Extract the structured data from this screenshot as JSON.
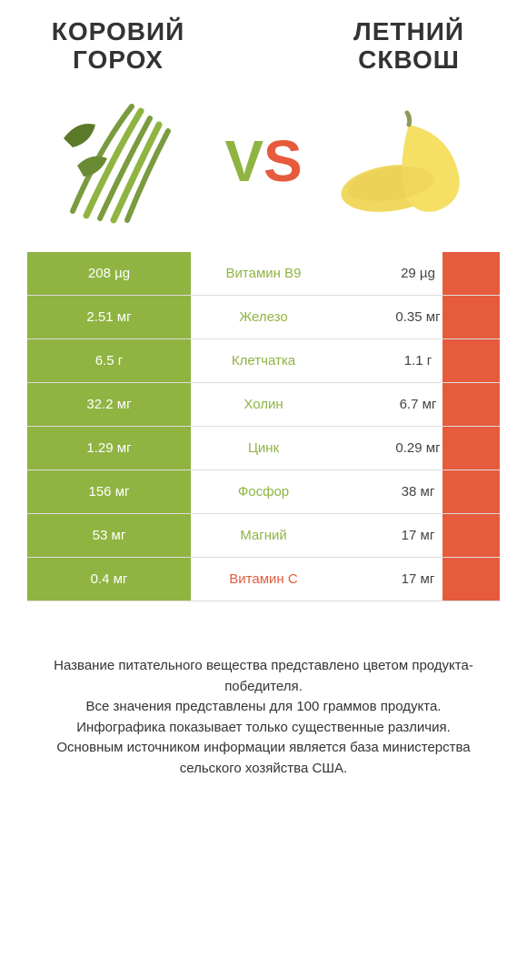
{
  "header": {
    "left_title": "КОРОВИЙ ГОРОХ",
    "right_title": "ЛЕТНИЙ СКВОШ",
    "vs_v": "V",
    "vs_s": "S"
  },
  "colors": {
    "green": "#8fb442",
    "orange": "#e55b3c",
    "white": "#ffffff",
    "text": "#444444",
    "border": "#dddddd"
  },
  "table": {
    "columns": [
      "left_value",
      "nutrient",
      "right_value"
    ],
    "left_bar_width_pct": 100,
    "right_bar_width_pct": 35,
    "rows": [
      {
        "left_value": "208 µg",
        "nutrient": "Витамин B9",
        "right_value": "29 µg",
        "winner": "left"
      },
      {
        "left_value": "2.51 мг",
        "nutrient": "Железо",
        "right_value": "0.35 мг",
        "winner": "left"
      },
      {
        "left_value": "6.5 г",
        "nutrient": "Клетчатка",
        "right_value": "1.1 г",
        "winner": "left"
      },
      {
        "left_value": "32.2 мг",
        "nutrient": "Холин",
        "right_value": "6.7 мг",
        "winner": "left"
      },
      {
        "left_value": "1.29 мг",
        "nutrient": "Цинк",
        "right_value": "0.29 мг",
        "winner": "left"
      },
      {
        "left_value": "156 мг",
        "nutrient": "Фосфор",
        "right_value": "38 мг",
        "winner": "left"
      },
      {
        "left_value": "53 мг",
        "nutrient": "Магний",
        "right_value": "17 мг",
        "winner": "left"
      },
      {
        "left_value": "0.4 мг",
        "nutrient": "Витамин C",
        "right_value": "17 мг",
        "winner": "right"
      }
    ]
  },
  "footer": {
    "line1": "Название питательного вещества представлено цветом продукта-победителя.",
    "line2": "Все значения представлены для 100 граммов продукта.",
    "line3": "Инфографика показывает только существенные различия.",
    "line4": "Основным источником информации является база министерства сельского хозяйства США."
  }
}
